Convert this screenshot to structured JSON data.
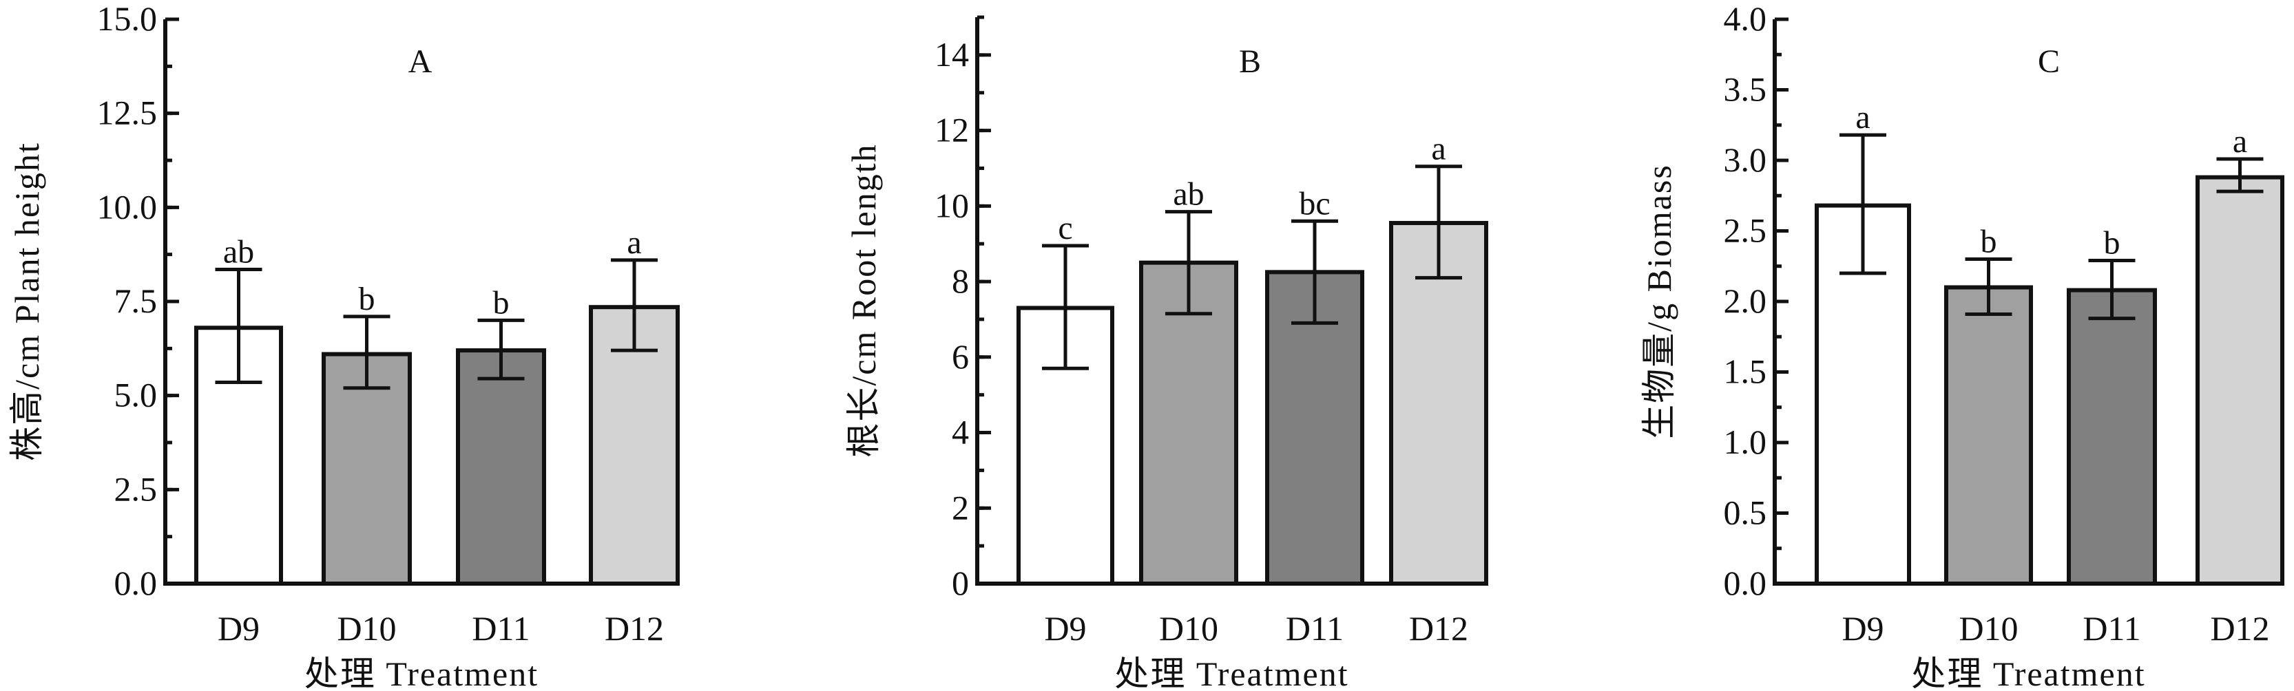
{
  "chart_data": [
    {
      "type": "bar",
      "title": "A",
      "xlabel": "处理 Treatment",
      "ylabel": "株高/cm Plant height",
      "categories": [
        "D9",
        "D10",
        "D11",
        "D12"
      ],
      "values": [
        6.8,
        6.1,
        6.2,
        7.35
      ],
      "error_low": [
        5.35,
        5.2,
        5.45,
        6.2
      ],
      "error_high": [
        8.35,
        7.1,
        7.0,
        8.6
      ],
      "letters": [
        "ab",
        "b",
        "b",
        "a"
      ],
      "ylim": [
        0,
        15
      ],
      "yticks": [
        0,
        2.5,
        5,
        7.5,
        10,
        12.5,
        15
      ],
      "ytick_labels": [
        "0.0",
        "2.5",
        "5.0",
        "7.5",
        "10.0",
        "12.5",
        "15.0"
      ],
      "minor_step": 1.25,
      "colors": [
        "#ffffff",
        "#a0a0a0",
        "#808080",
        "#d3d3d3"
      ]
    },
    {
      "type": "bar",
      "title": "B",
      "xlabel": "处理 Treatment",
      "ylabel": "根长/cm Root length",
      "categories": [
        "D9",
        "D10",
        "D11",
        "D12"
      ],
      "values": [
        7.3,
        8.5,
        8.25,
        9.55
      ],
      "error_low": [
        5.7,
        7.15,
        6.9,
        8.1
      ],
      "error_high": [
        8.95,
        9.85,
        9.6,
        11.05
      ],
      "letters": [
        "c",
        "ab",
        "bc",
        "a"
      ],
      "ylim": [
        0,
        15
      ],
      "yticks": [
        0,
        2,
        4,
        6,
        8,
        10,
        12,
        14
      ],
      "ytick_labels": [
        "0",
        "2",
        "4",
        "6",
        "8",
        "10",
        "12",
        "14"
      ],
      "minor_step": 1,
      "colors": [
        "#ffffff",
        "#a0a0a0",
        "#808080",
        "#d3d3d3"
      ]
    },
    {
      "type": "bar",
      "title": "C",
      "xlabel": "处理 Treatment",
      "ylabel": "生物量/g Biomass",
      "categories": [
        "D9",
        "D10",
        "D11",
        "D12"
      ],
      "values": [
        2.68,
        2.1,
        2.08,
        2.88
      ],
      "error_low": [
        2.2,
        1.91,
        1.88,
        2.78
      ],
      "error_high": [
        3.18,
        2.3,
        2.29,
        3.01
      ],
      "letters": [
        "a",
        "b",
        "b",
        "a"
      ],
      "ylim": [
        0,
        4
      ],
      "yticks": [
        0,
        0.5,
        1,
        1.5,
        2,
        2.5,
        3,
        3.5,
        4
      ],
      "ytick_labels": [
        "0.0",
        "0.5",
        "1.0",
        "1.5",
        "2.0",
        "2.5",
        "3.0",
        "3.5",
        "4.0"
      ],
      "minor_step": 0.25,
      "colors": [
        "#ffffff",
        "#a0a0a0",
        "#808080",
        "#d3d3d3"
      ]
    }
  ]
}
